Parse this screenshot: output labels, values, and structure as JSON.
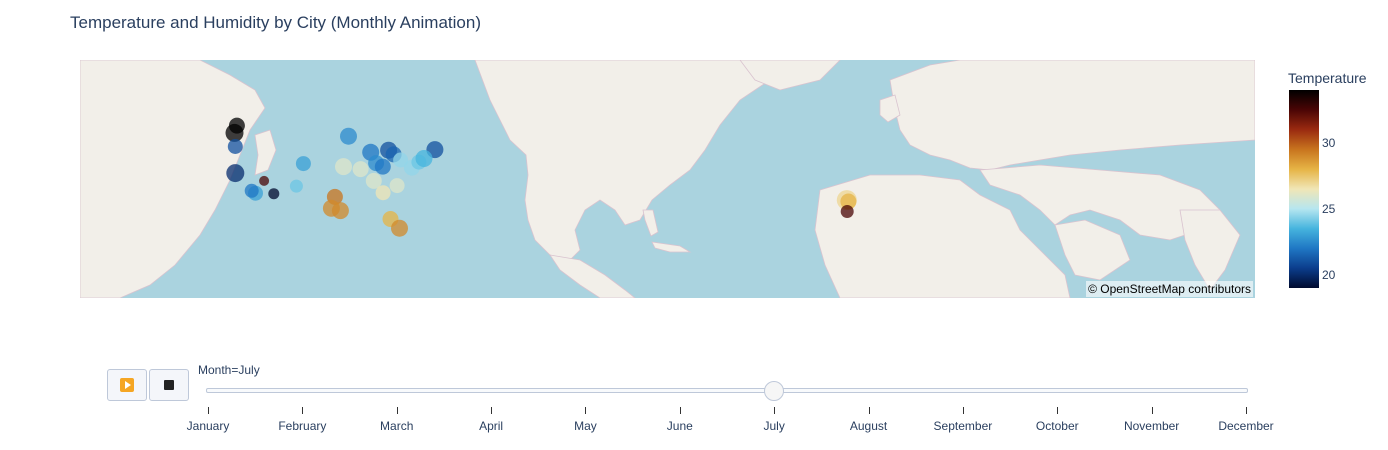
{
  "header": {
    "title": "Temperature and Humidity by City (Monthly Animation)"
  },
  "map": {
    "attribution": "© OpenStreetMap contributors",
    "ocean_color": "#aad3df",
    "land_color": "#f2efe9"
  },
  "controls": {
    "play_icon": "play-icon",
    "stop_icon": "stop-icon"
  },
  "slider": {
    "prefix": "Month=",
    "current": "July",
    "current_index": 6,
    "months": [
      "January",
      "February",
      "March",
      "April",
      "May",
      "June",
      "July",
      "August",
      "September",
      "October",
      "November",
      "December"
    ]
  },
  "chart_data": {
    "type": "scatter",
    "title": "Temperature and Humidity by City (Monthly Animation)",
    "colorbar_title": "Temperature",
    "colorbar_ticks": [
      20,
      25,
      30
    ],
    "color_range": [
      19,
      34
    ],
    "colorscale": [
      "#000a2e",
      "#0b3d8c",
      "#1f77c4",
      "#46b4de",
      "#b6e6f0",
      "#f0e6b6",
      "#e6b445",
      "#c8741e",
      "#9a2a10",
      "#4a0505",
      "#000000"
    ],
    "points": [
      {
        "lon": -122.6,
        "lat": 45.5,
        "temp": 34,
        "size": 18
      },
      {
        "lon": -122.0,
        "lat": 46.8,
        "temp": 34,
        "size": 16
      },
      {
        "lon": -122.4,
        "lat": 43.0,
        "temp": 21,
        "size": 15
      },
      {
        "lon": -122.4,
        "lat": 37.8,
        "temp": 20,
        "size": 18
      },
      {
        "lon": -117.2,
        "lat": 33.6,
        "temp": 23,
        "size": 15
      },
      {
        "lon": -118.2,
        "lat": 34.1,
        "temp": 22,
        "size": 14
      },
      {
        "lon": -115.0,
        "lat": 36.2,
        "temp": 32.5,
        "size": 10
      },
      {
        "lon": -112.5,
        "lat": 33.5,
        "temp": 19,
        "size": 11
      },
      {
        "lon": -106.7,
        "lat": 35.1,
        "temp": 24,
        "size": 13
      },
      {
        "lon": -104.9,
        "lat": 39.7,
        "temp": 23,
        "size": 15
      },
      {
        "lon": -96.8,
        "lat": 32.8,
        "temp": 29.5,
        "size": 16
      },
      {
        "lon": -97.7,
        "lat": 30.3,
        "temp": 29,
        "size": 17
      },
      {
        "lon": -95.4,
        "lat": 29.8,
        "temp": 29,
        "size": 17
      },
      {
        "lon": -93.3,
        "lat": 44.9,
        "temp": 22.5,
        "size": 17
      },
      {
        "lon": -94.6,
        "lat": 39.1,
        "temp": 26,
        "size": 17
      },
      {
        "lon": -90.2,
        "lat": 38.6,
        "temp": 26,
        "size": 16
      },
      {
        "lon": -87.6,
        "lat": 41.9,
        "temp": 22,
        "size": 17
      },
      {
        "lon": -86.8,
        "lat": 36.2,
        "temp": 26,
        "size": 16
      },
      {
        "lon": -84.4,
        "lat": 33.7,
        "temp": 26.5,
        "size": 15
      },
      {
        "lon": -86.2,
        "lat": 39.8,
        "temp": 22.5,
        "size": 16
      },
      {
        "lon": -83.0,
        "lat": 42.3,
        "temp": 21,
        "size": 17
      },
      {
        "lon": -81.7,
        "lat": 41.5,
        "temp": 21.5,
        "size": 16
      },
      {
        "lon": -84.5,
        "lat": 39.1,
        "temp": 22,
        "size": 16
      },
      {
        "lon": -82.5,
        "lat": 27.9,
        "temp": 28,
        "size": 16
      },
      {
        "lon": -80.2,
        "lat": 25.8,
        "temp": 29,
        "size": 17
      },
      {
        "lon": -80.8,
        "lat": 35.2,
        "temp": 26,
        "size": 15
      },
      {
        "lon": -79.9,
        "lat": 40.4,
        "temp": 24.5,
        "size": 15
      },
      {
        "lon": -77.0,
        "lat": 38.9,
        "temp": 24.5,
        "size": 16
      },
      {
        "lon": -75.2,
        "lat": 40.0,
        "temp": 24,
        "size": 15
      },
      {
        "lon": -71.1,
        "lat": 42.4,
        "temp": 21,
        "size": 17
      },
      {
        "lon": -73.9,
        "lat": 40.7,
        "temp": 23.5,
        "size": 17
      },
      {
        "lon": 34.8,
        "lat": 32.1,
        "temp": 27,
        "size": 20
      },
      {
        "lon": 35.2,
        "lat": 31.8,
        "temp": 28,
        "size": 16
      },
      {
        "lon": 34.9,
        "lat": 29.6,
        "temp": 32.5,
        "size": 13
      }
    ]
  }
}
